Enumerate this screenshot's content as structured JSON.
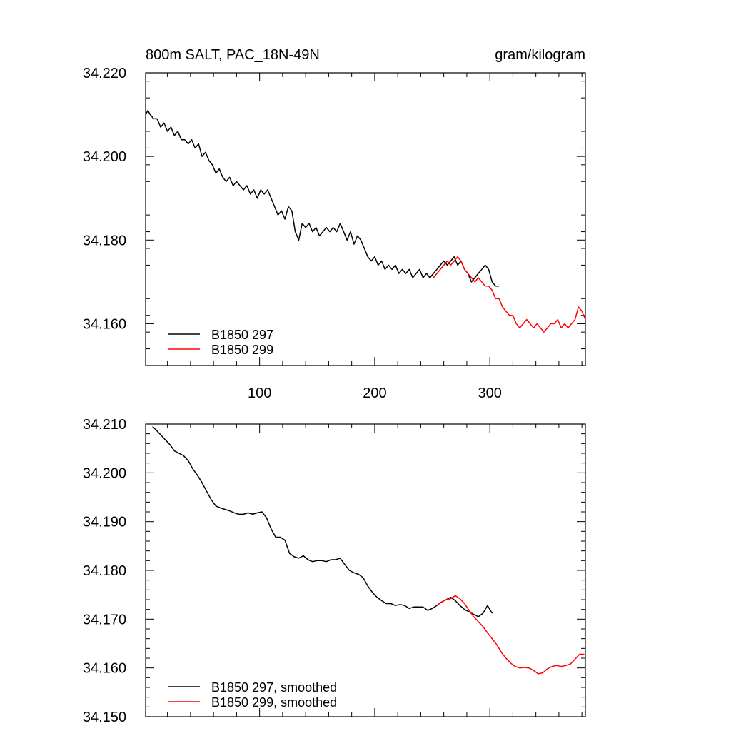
{
  "chart_data": [
    {
      "type": "line",
      "title_left": "800m SALT, PAC_18N-49N",
      "title_right": "gram/kilogram",
      "xlabel": "",
      "ylabel": "",
      "xlim": [
        1,
        383
      ],
      "ylim": [
        34.15,
        34.22
      ],
      "xticks": [
        100,
        200,
        300
      ],
      "xticklabels": [
        "100",
        "200",
        "300"
      ],
      "yticks": [
        34.16,
        34.18,
        34.2,
        34.22
      ],
      "yticklabels": [
        "34.160",
        "34.180",
        "34.200",
        "34.220"
      ],
      "grid": false,
      "legend_position": "bottom-left",
      "series": [
        {
          "name": "B1850 297",
          "color": "#000000",
          "x": [
            1,
            3,
            5,
            8,
            11,
            14,
            17,
            20,
            23,
            26,
            29,
            32,
            35,
            38,
            41,
            44,
            47,
            50,
            53,
            56,
            59,
            62,
            65,
            68,
            71,
            74,
            77,
            80,
            83,
            86,
            89,
            92,
            95,
            98,
            101,
            104,
            107,
            110,
            113,
            116,
            119,
            122,
            125,
            128,
            131,
            134,
            137,
            140,
            143,
            146,
            149,
            152,
            155,
            158,
            161,
            164,
            167,
            170,
            173,
            176,
            179,
            182,
            185,
            188,
            191,
            194,
            197,
            200,
            203,
            206,
            209,
            212,
            215,
            218,
            221,
            224,
            227,
            230,
            233,
            236,
            239,
            242,
            245,
            248,
            251,
            254,
            257,
            260,
            263,
            266,
            269,
            272,
            275,
            278,
            281,
            284,
            287,
            290,
            293,
            296,
            299,
            302,
            305,
            308
          ],
          "y": [
            34.21,
            34.211,
            34.21,
            34.209,
            34.209,
            34.207,
            34.208,
            34.206,
            34.207,
            34.205,
            34.206,
            34.204,
            34.204,
            34.203,
            34.204,
            34.202,
            34.203,
            34.2,
            34.201,
            34.199,
            34.198,
            34.196,
            34.197,
            34.195,
            34.194,
            34.195,
            34.193,
            34.194,
            34.193,
            34.192,
            34.193,
            34.191,
            34.192,
            34.19,
            34.192,
            34.191,
            34.192,
            34.19,
            34.188,
            34.186,
            34.187,
            34.185,
            34.188,
            34.187,
            34.182,
            34.18,
            34.184,
            34.183,
            34.184,
            34.182,
            34.183,
            34.181,
            34.182,
            34.183,
            34.182,
            34.183,
            34.182,
            34.184,
            34.182,
            34.18,
            34.182,
            34.179,
            34.181,
            34.18,
            34.178,
            34.176,
            34.175,
            34.176,
            34.174,
            34.175,
            34.173,
            34.174,
            34.173,
            34.174,
            34.172,
            34.173,
            34.172,
            34.173,
            34.171,
            34.172,
            34.173,
            34.171,
            34.172,
            34.171,
            34.172,
            34.173,
            34.174,
            34.175,
            34.174,
            34.175,
            34.176,
            34.174,
            34.175,
            34.173,
            34.172,
            34.17,
            34.171,
            34.172,
            34.173,
            34.174,
            34.173,
            34.17,
            34.169,
            34.169
          ]
        },
        {
          "name": "B1850 299",
          "color": "#ff0000",
          "x": [
            251,
            254,
            257,
            260,
            263,
            266,
            269,
            272,
            275,
            278,
            281,
            284,
            287,
            290,
            293,
            296,
            299,
            302,
            305,
            308,
            311,
            314,
            317,
            320,
            323,
            326,
            329,
            332,
            335,
            338,
            341,
            344,
            347,
            350,
            353,
            356,
            359,
            362,
            365,
            368,
            371,
            374,
            377,
            380,
            383
          ],
          "y": [
            34.171,
            34.172,
            34.173,
            34.174,
            34.175,
            34.174,
            34.175,
            34.176,
            34.175,
            34.173,
            34.172,
            34.171,
            34.17,
            34.171,
            34.17,
            34.169,
            34.169,
            34.168,
            34.166,
            34.166,
            34.164,
            34.163,
            34.162,
            34.162,
            34.16,
            34.159,
            34.16,
            34.161,
            34.16,
            34.159,
            34.16,
            34.159,
            34.158,
            34.159,
            34.16,
            34.16,
            34.161,
            34.159,
            34.16,
            34.159,
            34.16,
            34.161,
            34.164,
            34.163,
            34.161
          ]
        }
      ]
    },
    {
      "type": "line",
      "xlabel": "",
      "ylabel": "",
      "xlim": [
        1,
        383
      ],
      "ylim": [
        34.15,
        34.21
      ],
      "xticks": [
        100,
        200,
        300
      ],
      "xticklabels": [],
      "yticks": [
        34.15,
        34.16,
        34.17,
        34.18,
        34.19,
        34.2,
        34.21
      ],
      "yticklabels": [
        "34.150",
        "34.160",
        "34.170",
        "34.180",
        "34.190",
        "34.200",
        "34.210"
      ],
      "grid": false,
      "legend_position": "bottom-left",
      "series": [
        {
          "name": "B1850 297, smoothed",
          "color": "#000000",
          "x": [
            7,
            10,
            14,
            18,
            22,
            26,
            30,
            34,
            38,
            42,
            46,
            50,
            54,
            58,
            62,
            66,
            70,
            74,
            78,
            82,
            86,
            90,
            94,
            98,
            102,
            106,
            110,
            114,
            118,
            122,
            126,
            130,
            134,
            138,
            142,
            146,
            150,
            154,
            158,
            162,
            166,
            170,
            174,
            178,
            182,
            186,
            190,
            194,
            198,
            202,
            206,
            210,
            214,
            218,
            222,
            226,
            230,
            234,
            238,
            242,
            246,
            250,
            254,
            258,
            262,
            266,
            270,
            274,
            278,
            282,
            286,
            290,
            294,
            298,
            302
          ],
          "y": [
            34.2095,
            34.2088,
            34.2078,
            34.2068,
            34.2058,
            34.2045,
            34.204,
            34.2035,
            34.2025,
            34.2008,
            34.1995,
            34.198,
            34.1962,
            34.1945,
            34.1932,
            34.1928,
            34.1925,
            34.1922,
            34.1918,
            34.1915,
            34.1915,
            34.1918,
            34.1915,
            34.1918,
            34.192,
            34.1908,
            34.1885,
            34.1868,
            34.1868,
            34.1862,
            34.1835,
            34.1828,
            34.1825,
            34.183,
            34.1822,
            34.1818,
            34.182,
            34.182,
            34.1818,
            34.1822,
            34.1822,
            34.1825,
            34.1812,
            34.18,
            34.1795,
            34.1792,
            34.1785,
            34.1768,
            34.1755,
            34.1745,
            34.1738,
            34.1732,
            34.1732,
            34.1728,
            34.173,
            34.1728,
            34.1722,
            34.1725,
            34.1725,
            34.1725,
            34.1718,
            34.1722,
            34.1728,
            34.1735,
            34.174,
            34.1745,
            34.1738,
            34.1728,
            34.172,
            34.1715,
            34.171,
            34.1705,
            34.1712,
            34.1728,
            34.1712
          ]
        },
        {
          "name": "B1850 299, smoothed",
          "color": "#ff0000",
          "x": [
            254,
            258,
            262,
            266,
            270,
            274,
            278,
            282,
            286,
            290,
            294,
            298,
            302,
            306,
            310,
            314,
            318,
            322,
            326,
            330,
            334,
            338,
            342,
            346,
            350,
            354,
            358,
            362,
            366,
            370,
            374,
            378,
            382
          ],
          "y": [
            34.1728,
            34.1735,
            34.174,
            34.1742,
            34.1748,
            34.1742,
            34.1732,
            34.1718,
            34.1705,
            34.1695,
            34.1685,
            34.1672,
            34.166,
            34.1648,
            34.1632,
            34.162,
            34.161,
            34.1603,
            34.16,
            34.1601,
            34.16,
            34.1595,
            34.1588,
            34.159,
            34.1598,
            34.1603,
            34.1605,
            34.1603,
            34.1605,
            34.1608,
            34.1618,
            34.1628,
            34.1628
          ]
        }
      ]
    }
  ]
}
